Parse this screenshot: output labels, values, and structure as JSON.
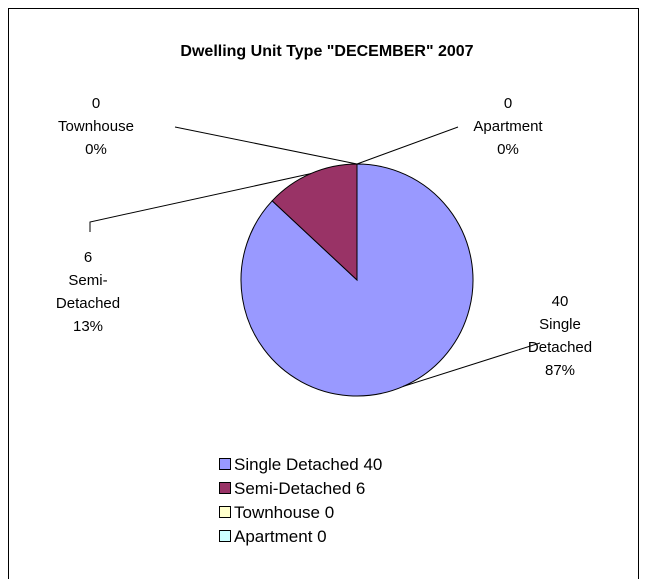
{
  "chart_data": {
    "type": "pie",
    "title": "Dwelling Unit Type \"DECEMBER\"  2007",
    "categories": [
      "Single Detached",
      "Semi-Detached",
      "Townhouse",
      "Apartment"
    ],
    "legend_labels": [
      "Single Detached 40",
      "Semi-Detached 6",
      "Townhouse 0",
      "Apartment 0"
    ],
    "values": [
      40,
      6,
      0,
      0
    ],
    "percents": [
      87,
      13,
      0,
      0
    ],
    "percent_labels": [
      "87%",
      "13%",
      "0%",
      "0%"
    ],
    "colors": [
      "#9999ff",
      "#993366",
      "#ffffcc",
      "#ccffff"
    ],
    "legend": "bottom"
  }
}
